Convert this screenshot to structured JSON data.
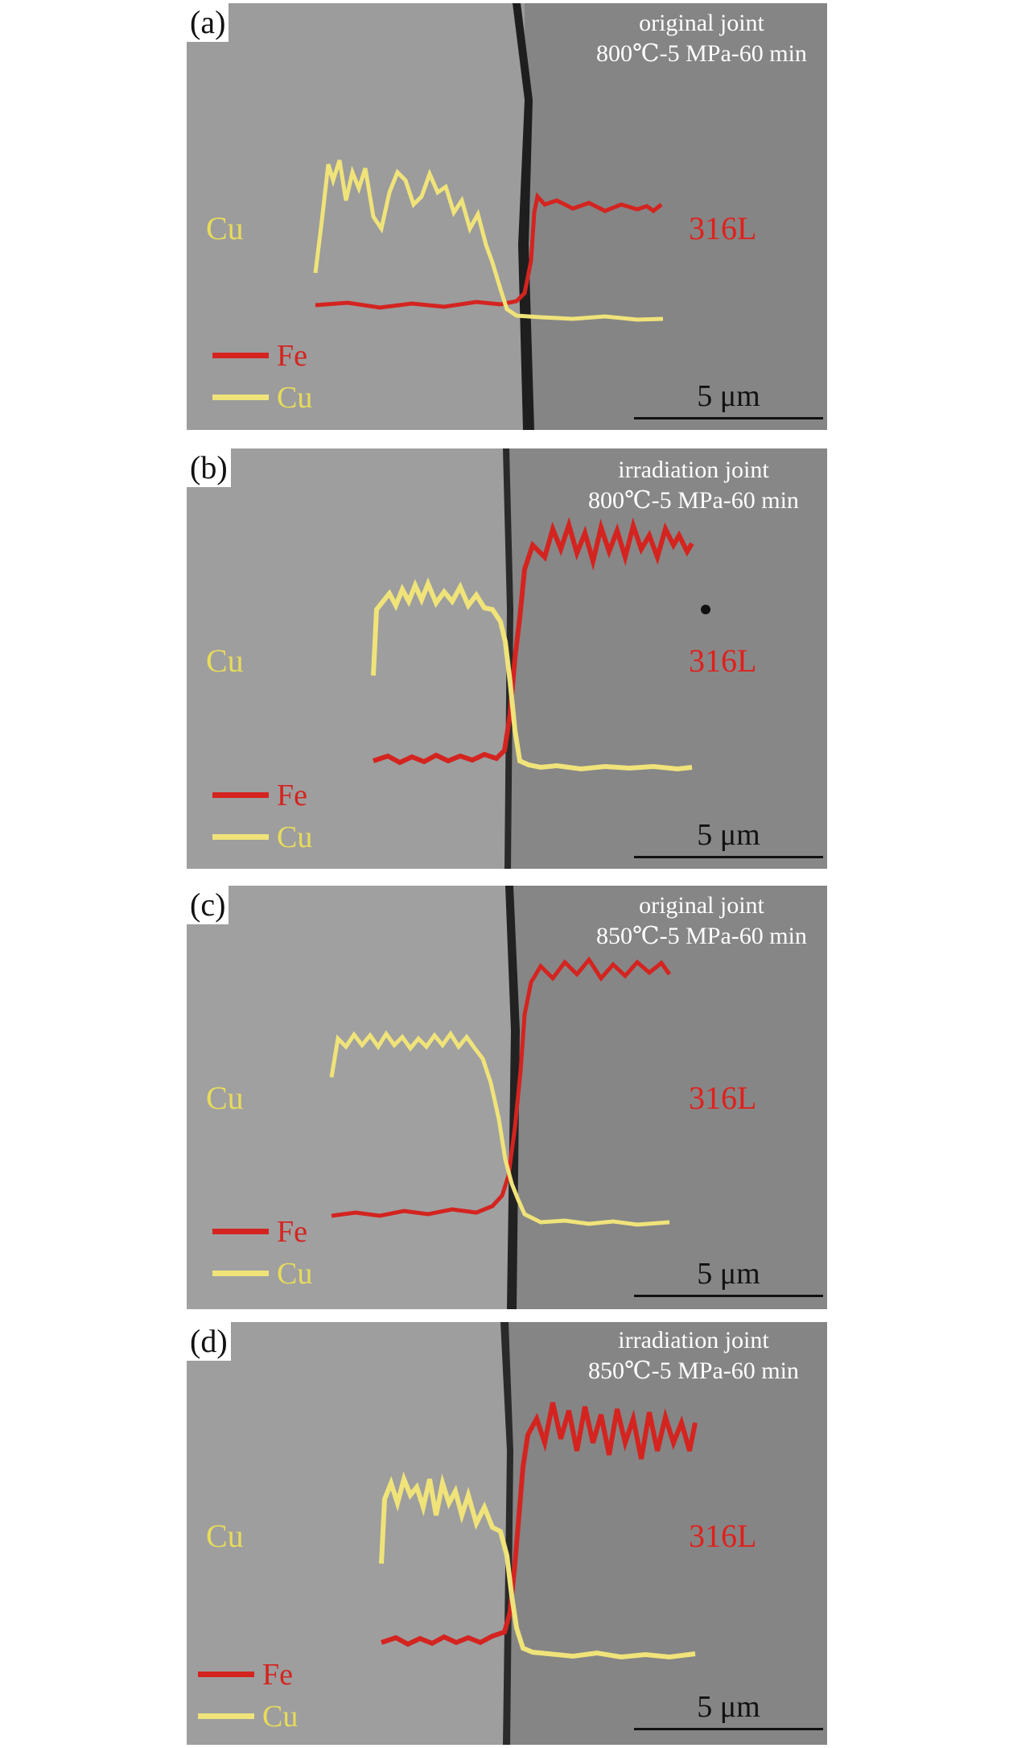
{
  "colors": {
    "fe_line": "#d42420",
    "cu_line": "#efe37a",
    "cu_text": "#e8dc5a",
    "ss_text": "#e0201c",
    "bg_left": "#9c9c9c",
    "bg_right": "#858585",
    "interface": "#222222"
  },
  "legend": {
    "fe": "Fe",
    "cu": "Cu"
  },
  "scale_label": "5 μm",
  "panels": [
    {
      "label": "(a)",
      "line1": "original joint",
      "line2": "800℃-5 MPa-60 min",
      "left_material": "Cu",
      "right_material": "316L"
    },
    {
      "label": "(b)",
      "line1": "irradiation joint",
      "line2": "800℃-5 MPa-60 min",
      "left_material": "Cu",
      "right_material": "316L"
    },
    {
      "label": "(c)",
      "line1": "original joint",
      "line2": "850℃-5 MPa-60 min",
      "left_material": "Cu",
      "right_material": "316L"
    },
    {
      "label": "(d)",
      "line1": "irradiation joint",
      "line2": "850℃-5 MPa-60 min",
      "left_material": "Cu",
      "right_material": "316L"
    }
  ]
}
